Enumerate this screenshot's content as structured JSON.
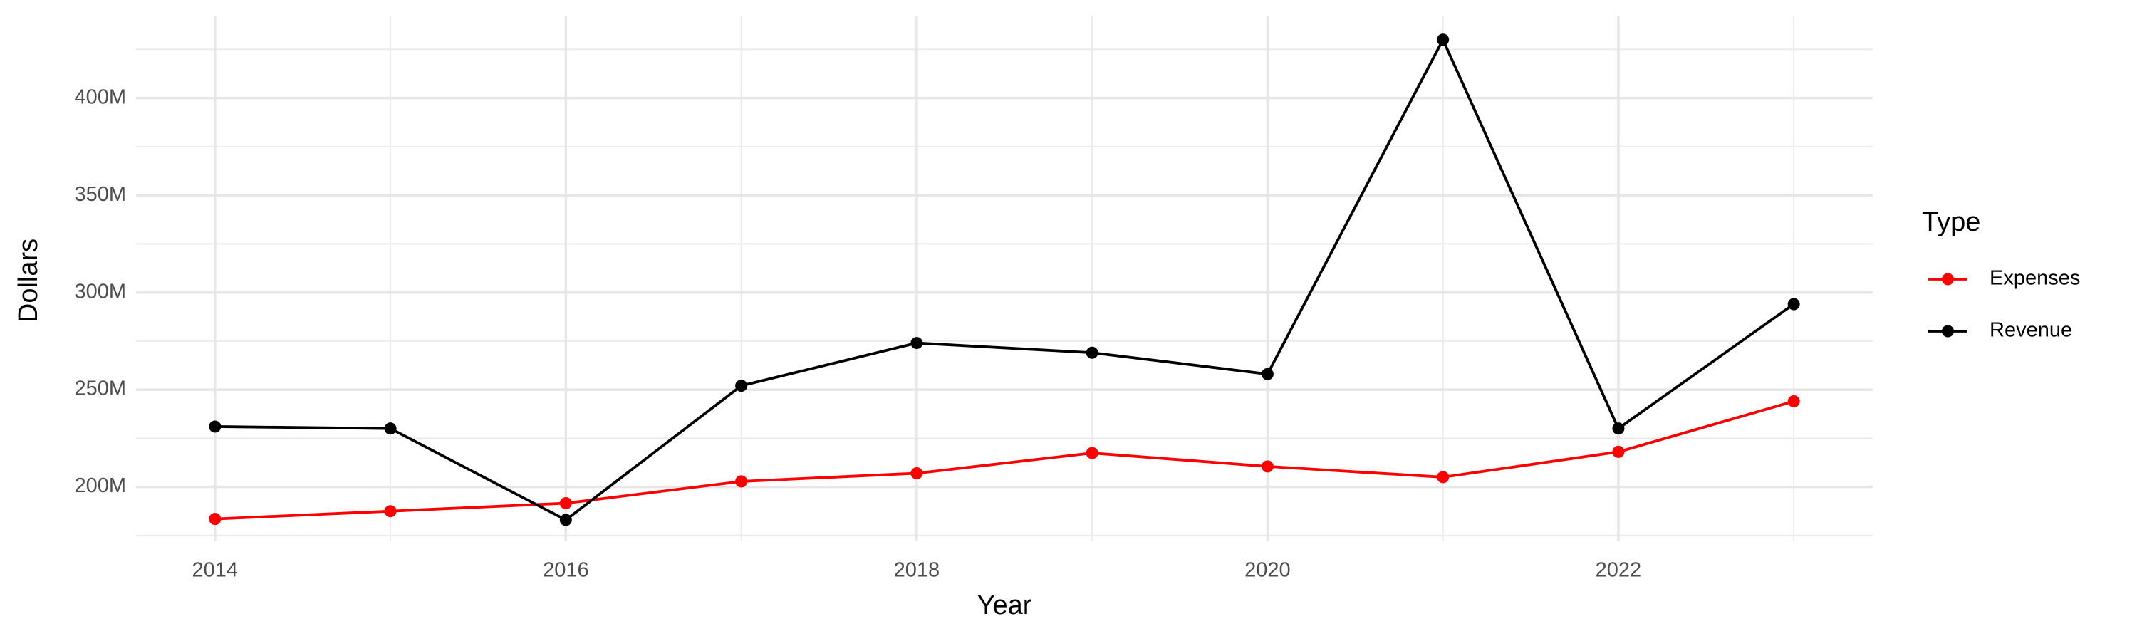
{
  "chart_data": {
    "type": "line",
    "x_label": "Year",
    "y_label": "Dollars",
    "legend_title": "Type",
    "legend_position": "right",
    "grid": true,
    "x": [
      2014,
      2015,
      2016,
      2017,
      2018,
      2019,
      2020,
      2021,
      2022,
      2023
    ],
    "xlim": [
      2013.55,
      2023.45
    ],
    "xticks": [
      2014,
      2016,
      2018,
      2020,
      2022
    ],
    "ylim": [
      172000000,
      442000000
    ],
    "yticks": [
      {
        "value": 200000000,
        "label": "200M"
      },
      {
        "value": 250000000,
        "label": "250M"
      },
      {
        "value": 300000000,
        "label": "300M"
      },
      {
        "value": 350000000,
        "label": "350M"
      },
      {
        "value": 400000000,
        "label": "400M"
      }
    ],
    "series": [
      {
        "name": "Expenses",
        "color": "#ff0000",
        "values": [
          183500000,
          187500000,
          191600000,
          202800000,
          207000000,
          217400000,
          210500000,
          205000000,
          218000000,
          244000000
        ]
      },
      {
        "name": "Revenue",
        "color": "#000000",
        "values": [
          231000000,
          230000000,
          183000000,
          252000000,
          274000000,
          269000000,
          258000000,
          430000000,
          230000000,
          294000000
        ]
      }
    ]
  }
}
